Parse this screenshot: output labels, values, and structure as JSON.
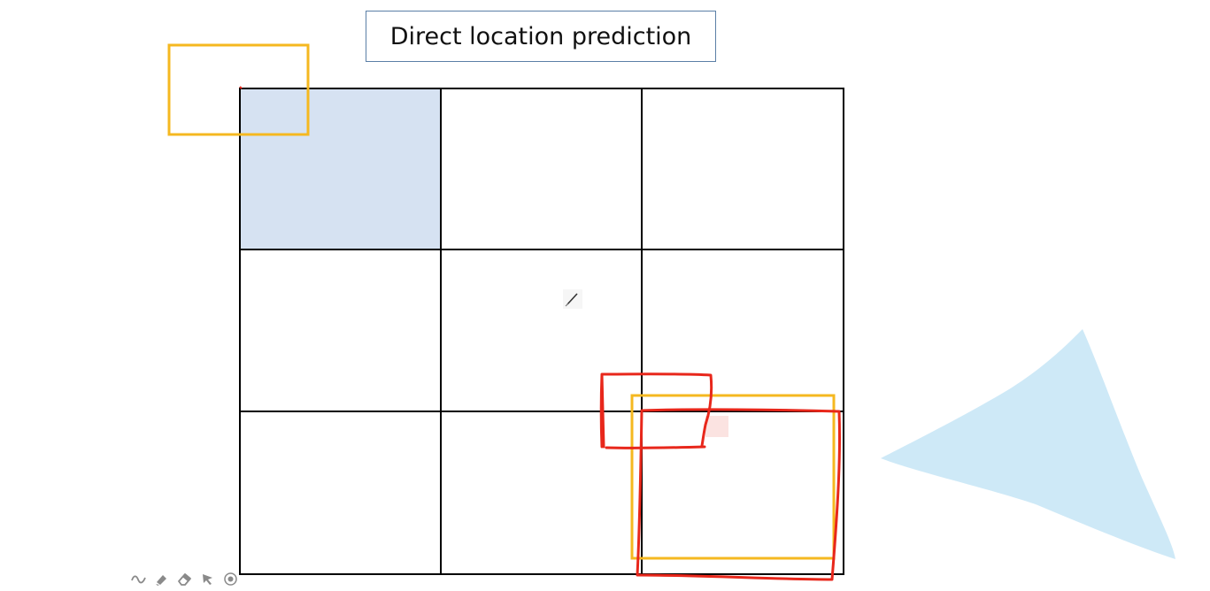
{
  "slide": {
    "title": "Direct location prediction"
  },
  "colors": {
    "grid_line": "#000000",
    "highlight_cell": "#d6e2f2",
    "yellow_box": "#f5b820",
    "red_ink": "#e8271b",
    "title_border": "#5b7fa6",
    "triangle": "#cbe8f7",
    "toolbar_icon": "#8a8a8a"
  },
  "grid": {
    "rows": 3,
    "cols": 3,
    "highlighted_cell": "row-1-col-1"
  },
  "toolbar": {
    "tools": [
      {
        "name": "ink-pen-icon"
      },
      {
        "name": "highlighter-icon"
      },
      {
        "name": "eraser-icon"
      },
      {
        "name": "pointer-arrow-icon"
      },
      {
        "name": "laser-pointer-icon"
      }
    ]
  }
}
